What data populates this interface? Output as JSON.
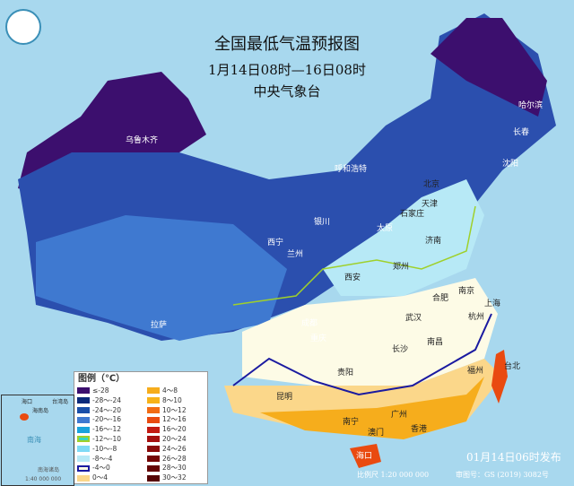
{
  "title": "全国最低气温预报图",
  "period": "1月14日08时—16日08时",
  "agency": "中央气象台",
  "legend": {
    "title": "图例（℃）",
    "items": [
      {
        "label": "≤-28",
        "color": "#3c0f6e"
      },
      {
        "label": "4～8",
        "color": "#f6ad1c"
      },
      {
        "label": "-28～-24",
        "color": "#0b2a7a"
      },
      {
        "label": "8～10",
        "color": "#f7b21a"
      },
      {
        "label": "-24～-20",
        "color": "#1a4fa8"
      },
      {
        "label": "10～12",
        "color": "#f26b14"
      },
      {
        "label": "-20～-16",
        "color": "#3f79d0"
      },
      {
        "label": "12～16",
        "color": "#e94a10"
      },
      {
        "label": "-16～-12",
        "color": "#1aa3dc"
      },
      {
        "label": "16～20",
        "color": "#c31a12"
      },
      {
        "label": "-12～-10",
        "color": "#35d7c0"
      },
      {
        "label": "20～24",
        "color": "#a50f0f"
      },
      {
        "label": "-10～-8",
        "color": "#7fdaf5"
      },
      {
        "label": "24～26",
        "color": "#8a0a0a"
      },
      {
        "label": "-8～-4",
        "color": "#b7e9f6"
      },
      {
        "label": "26～28",
        "color": "#740606"
      },
      {
        "label": "-4～0",
        "color": "#fdfbe6"
      },
      {
        "label": "28～30",
        "color": "#650404"
      },
      {
        "label": "0～4",
        "color": "#fbd78a"
      },
      {
        "label": "30～32",
        "color": "#560303"
      }
    ]
  },
  "cities": [
    "乌鲁木齐",
    "哈尔滨",
    "长春",
    "沈阳",
    "北京",
    "天津",
    "呼和浩特",
    "石家庄",
    "太原",
    "济南",
    "银川",
    "西宁",
    "兰州",
    "郑州",
    "西安",
    "合肥",
    "南京",
    "上海",
    "杭州",
    "武汉",
    "成都",
    "重庆",
    "拉萨",
    "长沙",
    "南昌",
    "福州",
    "台北",
    "贵阳",
    "昆明",
    "南宁",
    "广州",
    "澳门",
    "香港",
    "海口"
  ],
  "inset": {
    "haikou": "海口",
    "hainan": "海南岛",
    "taiwan": "台湾岛",
    "sea": "南海",
    "islands": "南海诸岛",
    "scale": "1:40 000 000"
  },
  "footer": {
    "issued": "01月14日06时发布",
    "scale": "比例尺 1:20 000 000",
    "approval": "审图号：GS (2019) 3082号"
  }
}
